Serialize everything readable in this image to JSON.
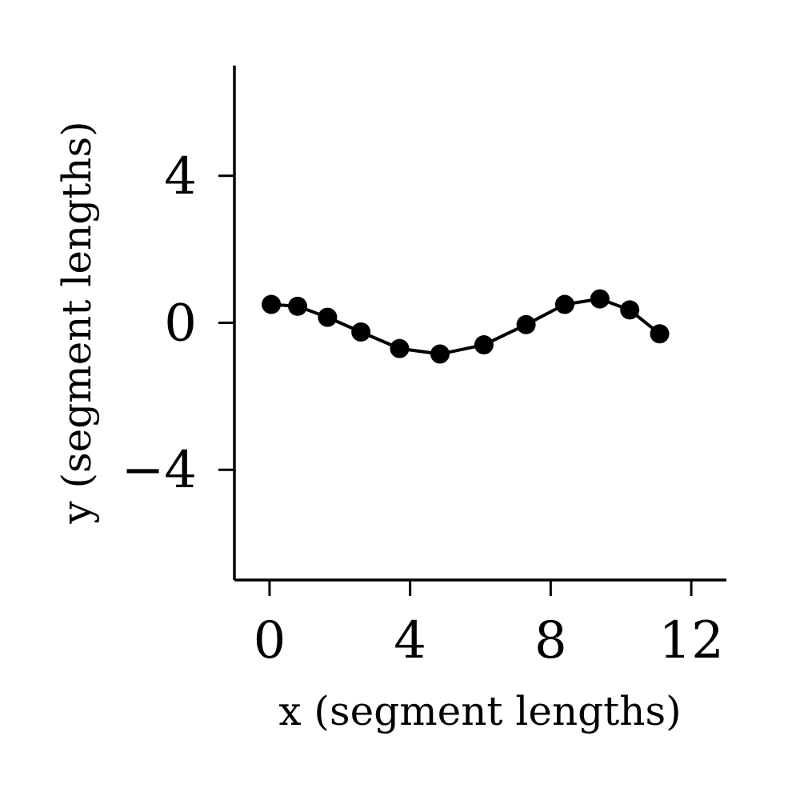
{
  "chart_data": {
    "type": "line",
    "title": "",
    "xlabel": "x (segment lengths)",
    "ylabel": "y (segment lengths)",
    "xlim": [
      -1,
      13
    ],
    "ylim": [
      -7,
      7
    ],
    "xticks": [
      0,
      4,
      8,
      12
    ],
    "yticks": [
      -4,
      0,
      4
    ],
    "xtick_labels": [
      "0",
      "4",
      "8",
      "12"
    ],
    "ytick_labels": [
      "−4",
      "0",
      "4"
    ],
    "grid": false,
    "legend": "none",
    "series": [
      {
        "color": "#000000",
        "marker": "circle",
        "x": [
          0.05,
          0.8,
          1.65,
          2.6,
          3.7,
          4.85,
          6.1,
          7.3,
          8.4,
          9.4,
          10.25,
          11.1
        ],
        "y": [
          0.5,
          0.45,
          0.15,
          -0.25,
          -0.7,
          -0.85,
          -0.6,
          -0.05,
          0.5,
          0.65,
          0.35,
          -0.3
        ]
      }
    ]
  }
}
